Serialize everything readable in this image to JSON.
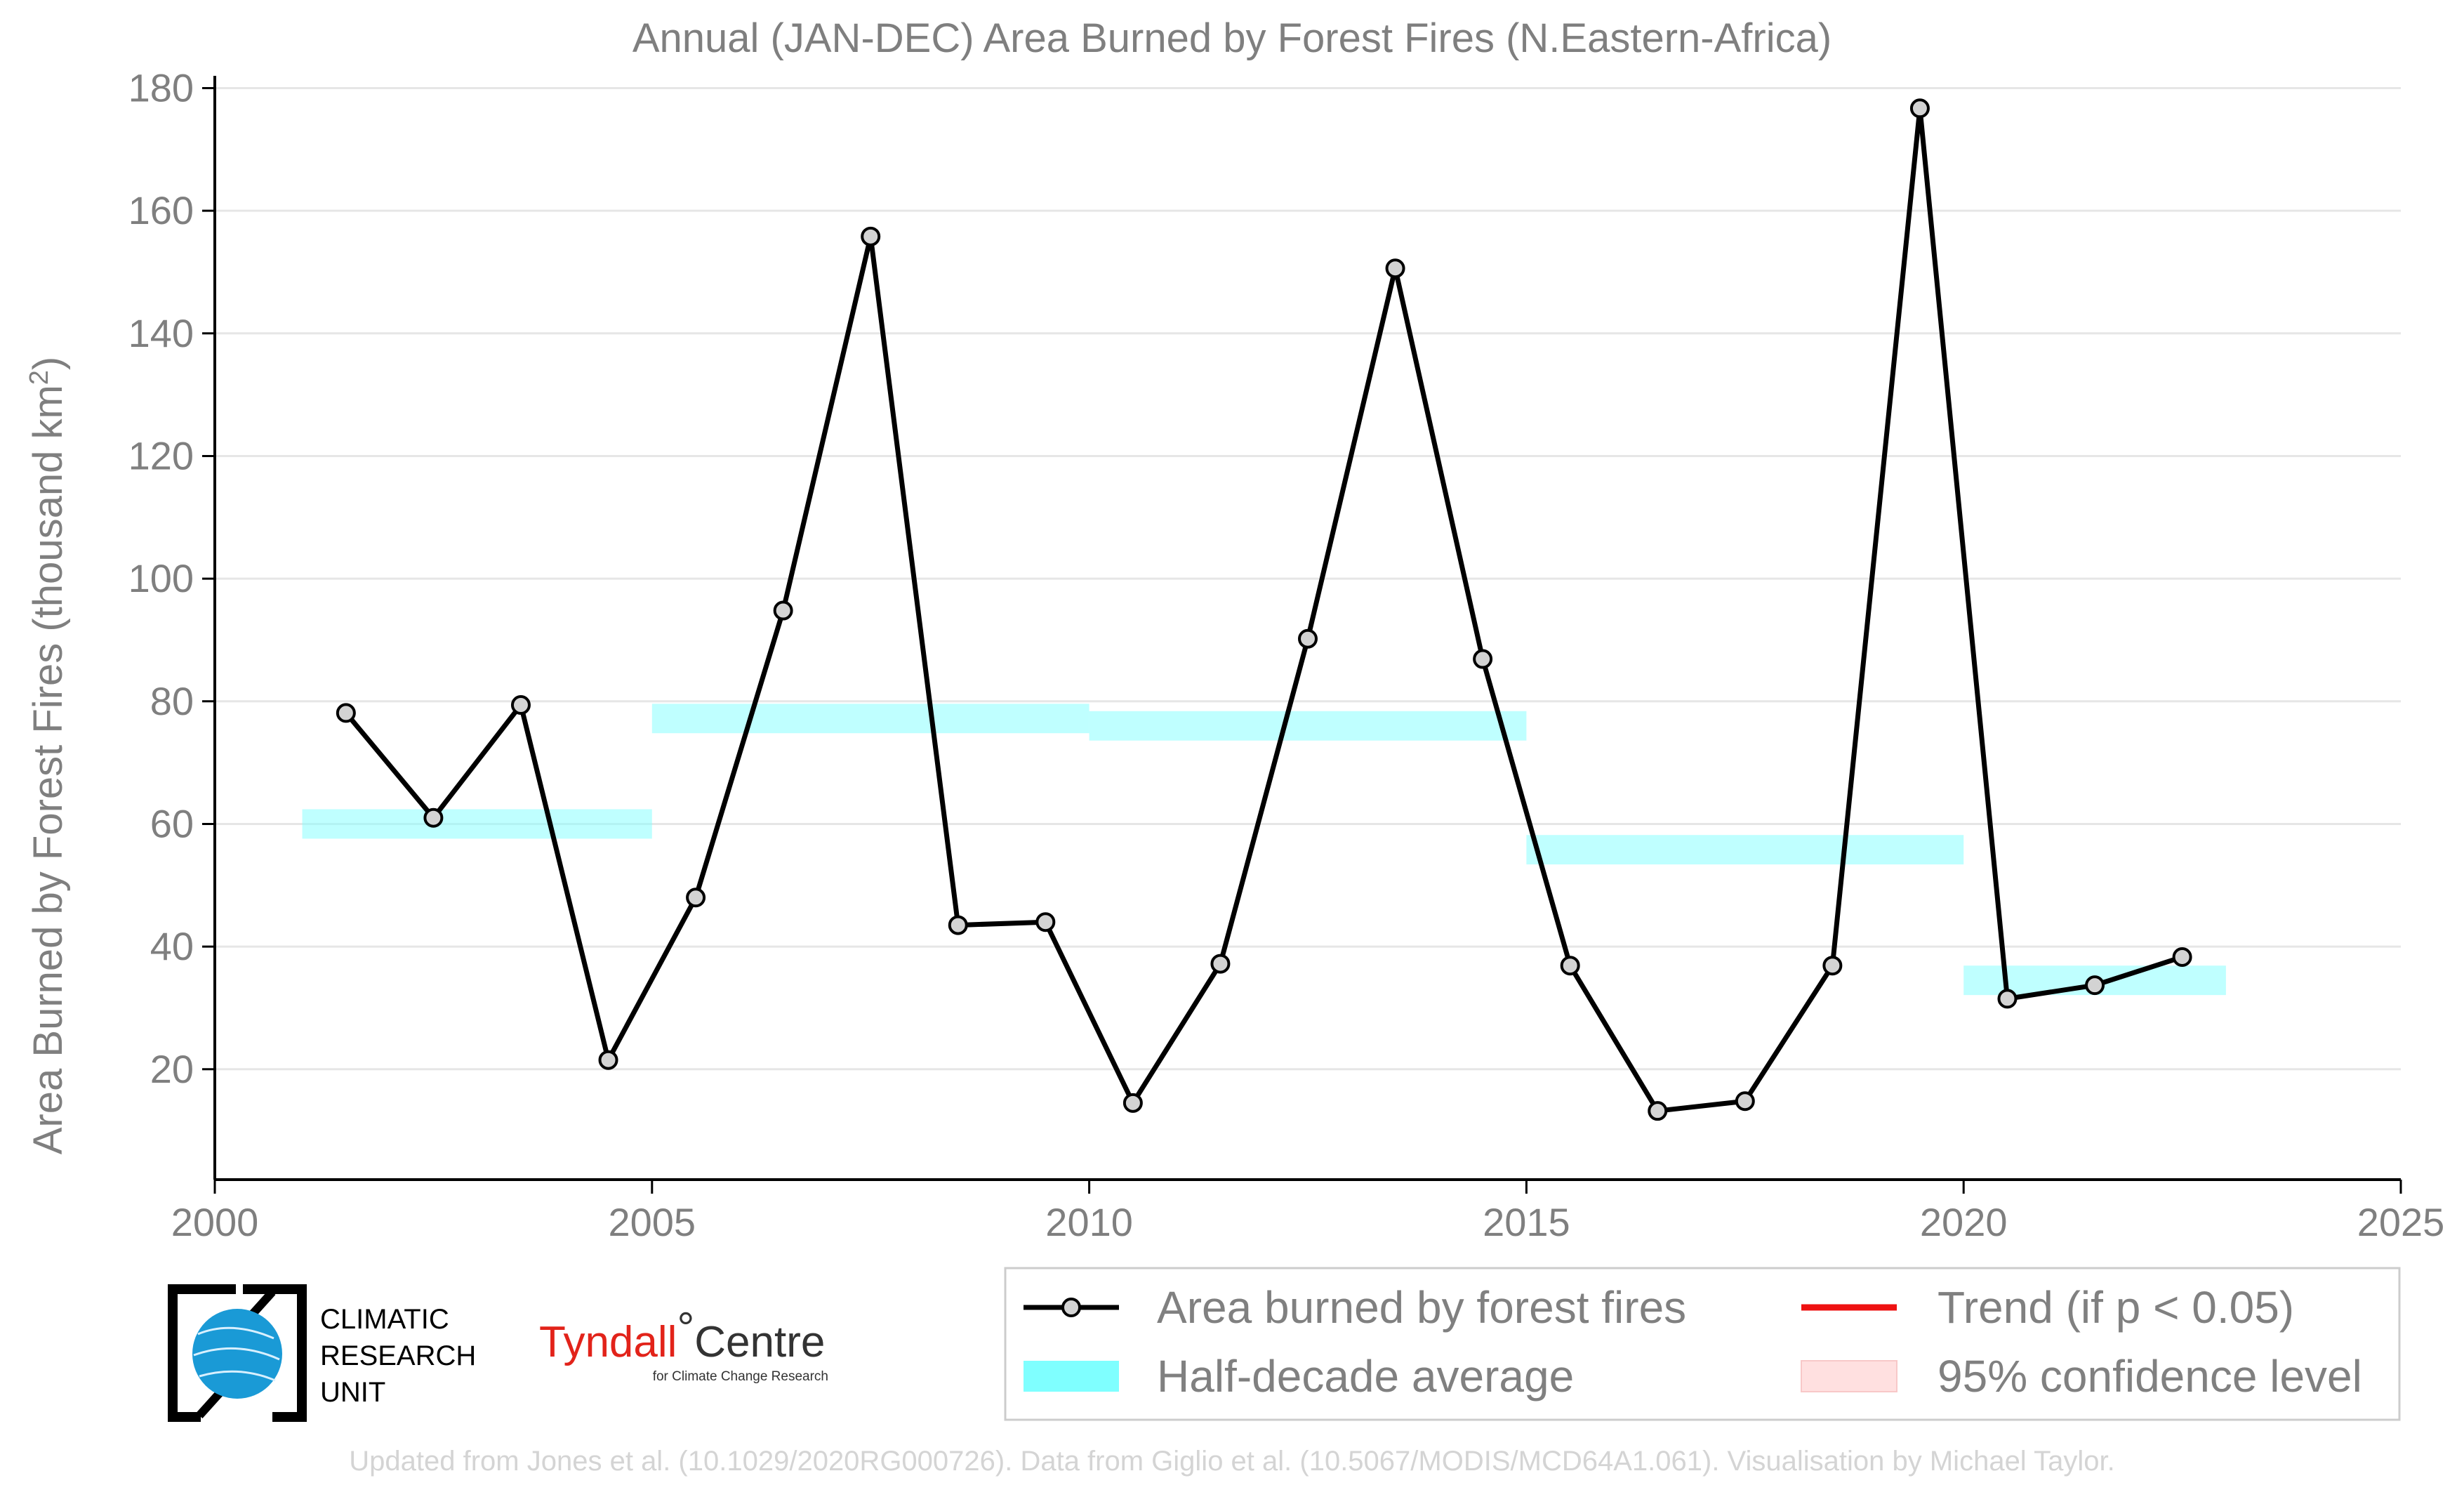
{
  "chart_data": {
    "type": "line",
    "title": "Annual (JAN-DEC) Area Burned by Forest Fires (N.Eastern-Africa)",
    "ylabel_main": "Area Burned by Forest Fires (thousand km",
    "ylabel_sup": "2",
    "ylabel_close": ")",
    "xlabel": "",
    "xlim": [
      2000,
      2025
    ],
    "ylim": [
      2,
      182
    ],
    "x_ticks": [
      2000,
      2005,
      2010,
      2015,
      2020,
      2025
    ],
    "y_ticks": [
      20,
      40,
      60,
      80,
      100,
      120,
      140,
      160,
      180
    ],
    "grid": "horizontal",
    "legend_position": "bottom-right",
    "series": [
      {
        "name": "Area burned by forest fires",
        "color": "#000000",
        "marker": "circle",
        "x": [
          2001.5,
          2002.5,
          2003.5,
          2004.5,
          2005.5,
          2006.5,
          2007.5,
          2008.5,
          2009.5,
          2010.5,
          2011.5,
          2012.5,
          2013.5,
          2014.5,
          2015.5,
          2016.5,
          2017.5,
          2018.5,
          2019.5,
          2020.5,
          2021.5,
          2022.5
        ],
        "values": [
          78.1,
          61.0,
          79.4,
          21.5,
          48.0,
          94.8,
          155.8,
          43.5,
          44.0,
          14.5,
          37.2,
          90.2,
          150.6,
          86.9,
          36.9,
          13.2,
          14.8,
          36.9,
          176.7,
          31.5,
          33.7,
          38.3
        ]
      }
    ],
    "half_decade_averages": {
      "name": "Half-decade average",
      "color": "#7fffff",
      "segments": [
        {
          "x_start": 2001,
          "x_end": 2005,
          "value": 60.0
        },
        {
          "x_start": 2005,
          "x_end": 2010,
          "value": 77.2
        },
        {
          "x_start": 2010,
          "x_end": 2015,
          "value": 76.0
        },
        {
          "x_start": 2015,
          "x_end": 2020,
          "value": 55.8
        },
        {
          "x_start": 2020,
          "x_end": 2023,
          "value": 34.5
        }
      ]
    },
    "legend": [
      {
        "label": "Area burned by forest fires",
        "kind": "line-marker",
        "color": "#000000"
      },
      {
        "label": "Half-decade average",
        "kind": "band",
        "color": "#7fffff"
      },
      {
        "label": "Trend (if p < 0.05)",
        "kind": "line",
        "color": "#ee1111"
      },
      {
        "label": "95% confidence level",
        "kind": "band",
        "color": "#ffe0e0"
      }
    ]
  },
  "logos": {
    "cru": {
      "line1": "CLIMATIC",
      "line2": "RESEARCH",
      "line3": "UNIT"
    },
    "tyndall": {
      "name": "Tyndall",
      "degree": "°",
      "centre": "Centre",
      "subtitle": "for Climate Change Research"
    }
  },
  "credit": "Updated from Jones et al. (10.1029/2020RG000726). Data from Giglio et al. (10.5067/MODIS/MCD64A1.061). Visualisation by Michael Taylor."
}
